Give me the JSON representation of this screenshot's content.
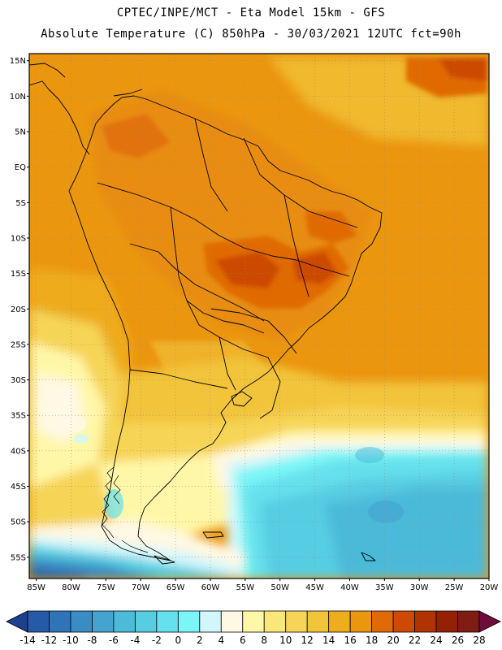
{
  "header": {
    "line1": "CPTEC/INPE/MCT -  Eta Model 15km - GFS",
    "line2": "Absolute Temperature (C) 850hPa - 30/03/2021 12UTC fct=90h"
  },
  "map": {
    "lat_labels": [
      "15N",
      "10N",
      "5N",
      "EQ",
      "5S",
      "10S",
      "15S",
      "20S",
      "25S",
      "30S",
      "35S",
      "40S",
      "45S",
      "50S",
      "55S"
    ],
    "lon_labels": [
      "85W",
      "80W",
      "75W",
      "70W",
      "65W",
      "60W",
      "55W",
      "50W",
      "45W",
      "40W",
      "35W",
      "30W",
      "25W",
      "20W"
    ],
    "lat_range": [
      -58,
      16
    ],
    "lon_range": [
      -86,
      -20
    ]
  },
  "colorbar": {
    "levels": [
      "-14",
      "-12",
      "-10",
      "-8",
      "-6",
      "-4",
      "-2",
      "0",
      "2",
      "4",
      "6",
      "8",
      "10",
      "12",
      "14",
      "16",
      "18",
      "20",
      "22",
      "24",
      "26",
      "28"
    ],
    "colors": [
      "#1f3f8f",
      "#245aa6",
      "#2f74b8",
      "#3a8cc4",
      "#44a4cf",
      "#4cbad9",
      "#57cde2",
      "#66e0ec",
      "#7af6f6",
      "#d2f6fb",
      "#fff8e4",
      "#fff7a8",
      "#fbe67a",
      "#f6d457",
      "#f2c43a",
      "#eeac1f",
      "#eb960f",
      "#e06a06",
      "#cc4a04",
      "#b03304",
      "#952104",
      "#7f1c14",
      "#6e0d3a"
    ]
  }
}
